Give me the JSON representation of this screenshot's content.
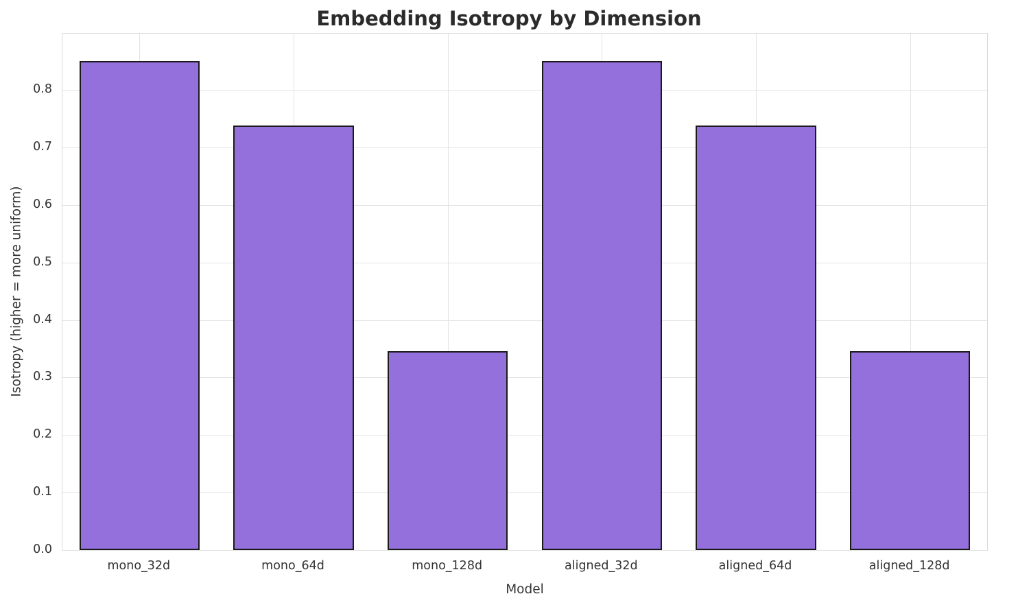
{
  "chart_data": {
    "type": "bar",
    "title": "Embedding Isotropy by Dimension",
    "xlabel": "Model",
    "ylabel": "Isotropy (higher = more uniform)",
    "categories": [
      "mono_32d",
      "mono_64d",
      "mono_128d",
      "aligned_32d",
      "aligned_64d",
      "aligned_128d"
    ],
    "values": [
      0.85,
      0.738,
      0.346,
      0.85,
      0.738,
      0.346
    ],
    "ylim": [
      0,
      0.898
    ],
    "yticks": [
      0.0,
      0.1,
      0.2,
      0.3,
      0.4,
      0.5,
      0.6,
      0.7,
      0.8
    ],
    "ytick_format_decimals": 1,
    "grid": true,
    "legend_position": "none",
    "bar_color": "#9370DB",
    "bar_edge_color": "#1a1a1a",
    "background_color": "#ffffff",
    "gridline_color": "#e3e3e3",
    "title_color": "#2b2b2b",
    "tick_color": "#333333"
  }
}
